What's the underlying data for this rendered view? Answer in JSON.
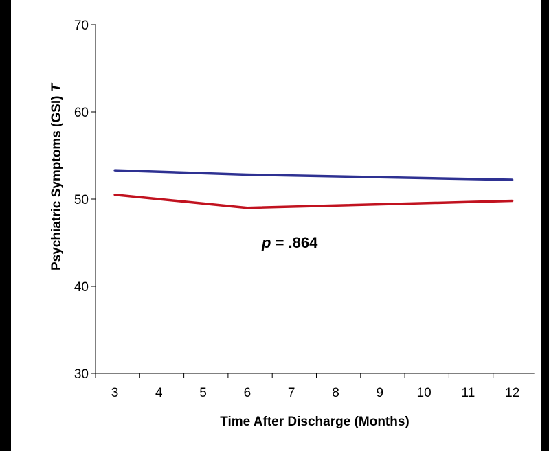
{
  "chart_data": {
    "type": "line",
    "x": [
      3,
      6,
      12
    ],
    "xticks": [
      "3",
      "4",
      "5",
      "6",
      "7",
      "8",
      "9",
      "10",
      "11",
      "12"
    ],
    "yticks": [
      "30",
      "40",
      "50",
      "60",
      "70"
    ],
    "ylim": [
      30,
      70
    ],
    "xlabel": "Time After Discharge (Months)",
    "ylabel": "Psychiatric Symptoms (GSI)",
    "ylabel_italic": "T",
    "annotation": {
      "italic": "p",
      "text": " = .864"
    },
    "series": [
      {
        "color": "#2e3192",
        "values": [
          53.3,
          52.8,
          52.2
        ]
      },
      {
        "color": "#c1121f",
        "values": [
          50.5,
          49.0,
          49.8
        ]
      }
    ],
    "grid": false,
    "legend": "none"
  }
}
